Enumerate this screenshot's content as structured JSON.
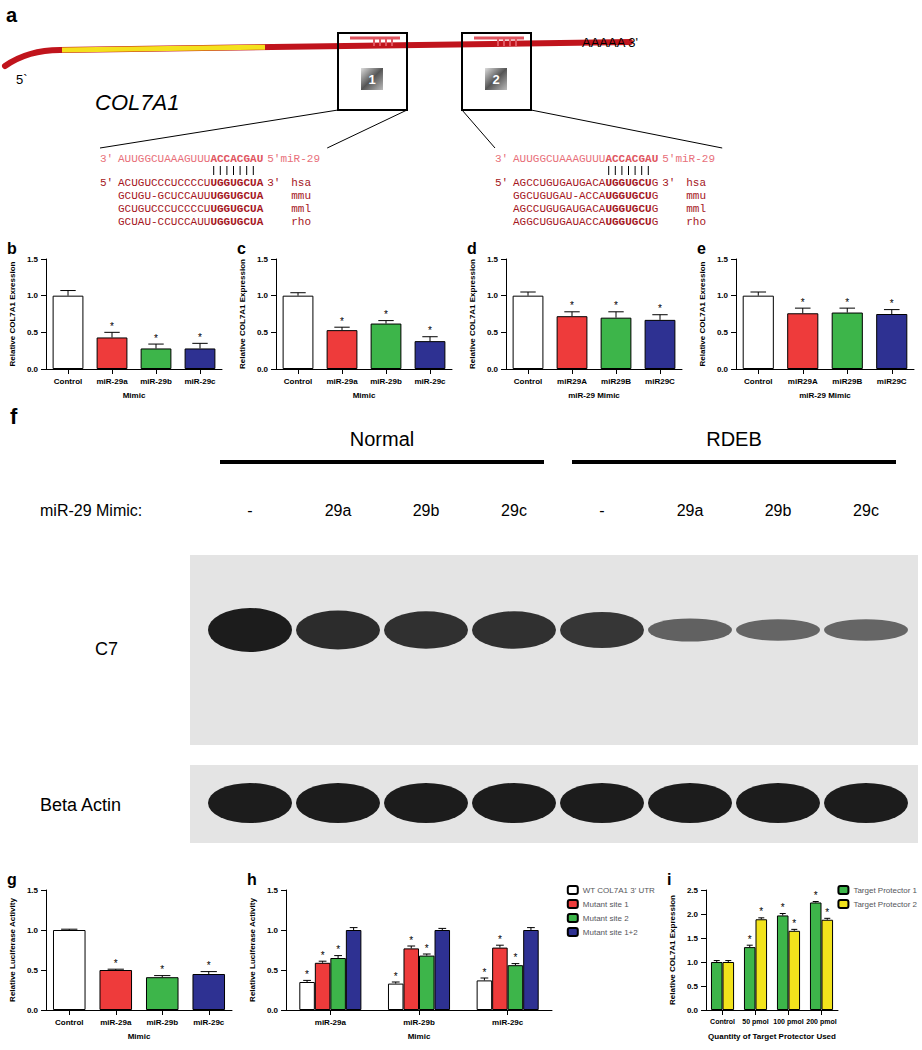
{
  "diagram": {
    "panel": "a",
    "gene": "COL7A1",
    "five_prime": "5`",
    "three_prime": "AAAAA 3'",
    "sites": [
      {
        "label": "1",
        "mirna": {
          "left": "3'",
          "plain": "AUUGGCUAAAGUUU",
          "seed": "ACCACGAU",
          "right": "5'miR-29"
        },
        "targets": [
          {
            "left": "5'",
            "plain": "ACUGUCCCUCCCCU",
            "seed": "UGGUGCUA",
            "right": "3'",
            "species": "hsa"
          },
          {
            "plain": "GCUGU-GCUCCAUU",
            "seed": "UGGUGCUA",
            "species": "mmu"
          },
          {
            "plain": "GCUGUCCCUCCCCU",
            "seed": "UGGUGCUA",
            "species": "mml"
          },
          {
            "plain": "GCUAU-CCUCCAUU",
            "seed": "UGGUGCUA",
            "species": "rho"
          }
        ]
      },
      {
        "label": "2",
        "mirna": {
          "left": "3'",
          "plain": "AUUGGCUAAAGUUU",
          "seed": "ACCACGAU",
          "right": "5'miR-29"
        },
        "targets": [
          {
            "left": "5'",
            "plain": "AGCCUGUGAUGACA",
            "seed": "UGGUGCU",
            "tail": "G",
            "right": "3'",
            "species": "hsa"
          },
          {
            "plain": "GGCUGUGAU-ACCA",
            "seed": "UGGUGCU",
            "tail": "G",
            "species": "mmu"
          },
          {
            "plain": "AGCCUGUGAUGACA",
            "seed": "UGGUGCU",
            "tail": "G",
            "species": "mml"
          },
          {
            "plain": "AGGCUGUGAUACCA",
            "seed": "UGGUGCU",
            "tail": "G",
            "species": "rho"
          }
        ]
      }
    ]
  },
  "blot": {
    "panel": "f",
    "row_label": "miR-29 Mimic:",
    "groups": [
      {
        "name": "Normal",
        "lanes": [
          "-",
          "29a",
          "29b",
          "29c"
        ]
      },
      {
        "name": "RDEB",
        "lanes": [
          "-",
          "29a",
          "29b",
          "29c"
        ]
      }
    ],
    "bands": [
      {
        "name": "C7",
        "intensity": [
          1.0,
          0.85,
          0.8,
          0.8,
          0.75,
          0.35,
          0.3,
          0.3
        ]
      },
      {
        "name": "Beta Actin",
        "intensity": [
          1.0,
          1.0,
          1.0,
          1.0,
          1.0,
          1.0,
          1.0,
          1.0
        ]
      }
    ]
  },
  "chart_data": [
    {
      "panel": "b",
      "type": "bar",
      "grid": false,
      "y_label": "Relative COL7A1 Exression",
      "x_label": "Mimic",
      "categories": [
        "Control",
        "miR-29a",
        "miR-29b",
        "miR-29c"
      ],
      "values": [
        1.0,
        0.43,
        0.28,
        0.28
      ],
      "errors": [
        0.07,
        0.07,
        0.06,
        0.07
      ],
      "significance": [
        null,
        "*",
        "*",
        "*"
      ],
      "colors": [
        "#ffffff",
        "#ee3b3b",
        "#3db54a",
        "#2e3192"
      ],
      "ylim": [
        0,
        1.5
      ],
      "yticks": [
        {
          "value": 0,
          "label": "0.0"
        },
        {
          "value": 0.5,
          "label": "0.5"
        },
        {
          "value": 1,
          "label": "1.0"
        },
        {
          "value": 1.5,
          "label": "1.5"
        }
      ]
    },
    {
      "panel": "c",
      "type": "bar",
      "grid": false,
      "y_label": "Relative COL7A1 Expression",
      "x_label": "Mimic",
      "categories": [
        "Control",
        "miR-29a",
        "miR-29b",
        "miR-29c"
      ],
      "values": [
        1.0,
        0.53,
        0.62,
        0.38
      ],
      "errors": [
        0.04,
        0.04,
        0.04,
        0.06
      ],
      "significance": [
        null,
        "*",
        "*",
        "*"
      ],
      "colors": [
        "#ffffff",
        "#ee3b3b",
        "#3db54a",
        "#2e3192"
      ],
      "ylim": [
        0,
        1.5
      ],
      "yticks": [
        {
          "value": 0,
          "label": "0.0"
        },
        {
          "value": 0.5,
          "label": "0.5"
        },
        {
          "value": 1,
          "label": "1.0"
        },
        {
          "value": 1.5,
          "label": "1.5"
        }
      ]
    },
    {
      "panel": "d",
      "type": "bar",
      "grid": false,
      "y_label": "Relative COL7A1 Expression",
      "x_label": "miR-29 Mimic",
      "categories": [
        "Control",
        "miR29A",
        "miR29B",
        "miR29C"
      ],
      "values": [
        1.0,
        0.72,
        0.7,
        0.67
      ],
      "errors": [
        0.05,
        0.06,
        0.08,
        0.07
      ],
      "significance": [
        null,
        "*",
        "*",
        "*"
      ],
      "colors": [
        "#ffffff",
        "#ee3b3b",
        "#3db54a",
        "#2e3192"
      ],
      "ylim": [
        0,
        1.5
      ],
      "yticks": [
        {
          "value": 0,
          "label": "0.0"
        },
        {
          "value": 0.5,
          "label": "0.5"
        },
        {
          "value": 1,
          "label": "1.0"
        },
        {
          "value": 1.5,
          "label": "1.5"
        }
      ]
    },
    {
      "panel": "e",
      "type": "bar",
      "grid": false,
      "y_label": "Relative COL7A1 Exression",
      "x_label": "miR-29 Mimic",
      "categories": [
        "Control",
        "miR29A",
        "miR29B",
        "miR29C"
      ],
      "values": [
        1.0,
        0.76,
        0.77,
        0.75
      ],
      "errors": [
        0.05,
        0.07,
        0.06,
        0.06
      ],
      "significance": [
        null,
        "*",
        "*",
        "*"
      ],
      "colors": [
        "#ffffff",
        "#ee3b3b",
        "#3db54a",
        "#2e3192"
      ],
      "ylim": [
        0,
        1.5
      ],
      "yticks": [
        {
          "value": 0,
          "label": "0.0"
        },
        {
          "value": 0.5,
          "label": "0.5"
        },
        {
          "value": 1,
          "label": "1.0"
        },
        {
          "value": 1.5,
          "label": "1.5"
        }
      ]
    },
    {
      "panel": "g",
      "type": "bar",
      "grid": false,
      "y_label": "Relative Luciferase Activity",
      "x_label": "Mimic",
      "categories": [
        "Control",
        "miR-29a",
        "miR-29b",
        "miR-29c"
      ],
      "values": [
        1.0,
        0.5,
        0.41,
        0.45
      ],
      "errors": [
        0.01,
        0.01,
        0.02,
        0.03
      ],
      "significance": [
        null,
        "*",
        "*",
        "*"
      ],
      "colors": [
        "#ffffff",
        "#ee3b3b",
        "#3db54a",
        "#2e3192"
      ],
      "ylim": [
        0,
        1.5
      ],
      "yticks": [
        {
          "value": 0,
          "label": "0.0"
        },
        {
          "value": 0.5,
          "label": "0.5"
        },
        {
          "value": 1,
          "label": "1.0"
        },
        {
          "value": 1.5,
          "label": "1.5"
        }
      ]
    },
    {
      "panel": "h",
      "type": "bar",
      "grid": false,
      "legend": "right",
      "y_label": "Relative Luciferase Activity",
      "x_label": "Mimic",
      "categories": [
        "miR-29a",
        "miR-29b",
        "miR-29c"
      ],
      "series": [
        {
          "name": "WT COL7A1 3' UTR",
          "color": "#ffffff",
          "values": [
            0.35,
            0.33,
            0.37
          ],
          "errors": [
            0.02,
            0.02,
            0.03
          ],
          "significance": [
            "*",
            "*",
            "*"
          ]
        },
        {
          "name": "Mutant site 1",
          "color": "#ee3b3b",
          "values": [
            0.59,
            0.77,
            0.78
          ],
          "errors": [
            0.02,
            0.03,
            0.03
          ],
          "significance": [
            "*",
            "*",
            "*"
          ]
        },
        {
          "name": "Mutant site 2",
          "color": "#3db54a",
          "values": [
            0.65,
            0.68,
            0.56
          ],
          "errors": [
            0.03,
            0.02,
            0.02
          ],
          "significance": [
            "*",
            "*",
            "*"
          ]
        },
        {
          "name": "Mutant site 1+2",
          "color": "#2e3192",
          "values": [
            1.0,
            1.0,
            1.0
          ],
          "errors": [
            0.03,
            0.02,
            0.03
          ],
          "significance": [
            null,
            null,
            null
          ]
        }
      ],
      "ylim": [
        0,
        1.5
      ],
      "yticks": [
        {
          "value": 0,
          "label": "0.0"
        },
        {
          "value": 0.5,
          "label": "0.5"
        },
        {
          "value": 1,
          "label": "1.0"
        },
        {
          "value": 1.5,
          "label": "1.5"
        }
      ]
    },
    {
      "panel": "i",
      "type": "bar",
      "grid": false,
      "legend": "right",
      "y_label": "Relative COL7A1 Expression",
      "x_label": "Quantity of Target Protector Used",
      "categories": [
        "Control",
        "50 pmol",
        "100 pmol",
        "200 pmol"
      ],
      "series": [
        {
          "name": "Target Protector 1",
          "color": "#3db54a",
          "values": [
            1.0,
            1.31,
            1.97,
            2.24
          ],
          "errors": [
            0.03,
            0.04,
            0.04,
            0.02
          ],
          "significance": [
            null,
            "*",
            "*",
            "*"
          ]
        },
        {
          "name": "Target Protector 2",
          "color": "#f2e31c",
          "values": [
            1.0,
            1.89,
            1.65,
            1.88
          ],
          "errors": [
            0.03,
            0.03,
            0.03,
            0.03
          ],
          "significance": [
            null,
            "*",
            "*",
            "*"
          ]
        }
      ],
      "ylim": [
        0,
        2.5
      ],
      "yticks": [
        {
          "value": 0,
          "label": "0.0"
        },
        {
          "value": 0.5,
          "label": "0.5"
        },
        {
          "value": 1,
          "label": "1.0"
        },
        {
          "value": 1.5,
          "label": "1.5"
        },
        {
          "value": 2,
          "label": "2.0"
        },
        {
          "value": 2.5,
          "label": "2.5"
        }
      ]
    }
  ]
}
